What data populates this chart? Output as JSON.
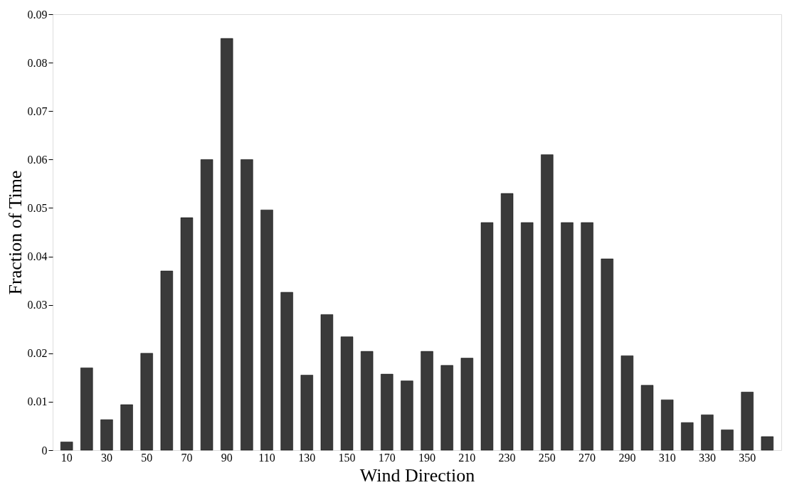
{
  "chart_data": {
    "type": "bar",
    "xlabel": "Wind Direction",
    "ylabel": "Fraction of Time",
    "categories": [
      "10",
      null,
      "30",
      null,
      "50",
      null,
      "70",
      null,
      "90",
      null,
      "110",
      null,
      "130",
      null,
      "150",
      null,
      "170",
      null,
      "190",
      null,
      "210",
      null,
      "230",
      null,
      "250",
      null,
      "270",
      null,
      "290",
      null,
      "310",
      null,
      "330",
      null,
      "350",
      null
    ],
    "values": [
      0.0017,
      0.017,
      0.0063,
      0.0094,
      0.02,
      0.037,
      0.048,
      0.06,
      0.085,
      0.06,
      0.0496,
      0.0326,
      0.0155,
      0.028,
      0.0234,
      0.0204,
      0.0157,
      0.0143,
      0.0204,
      0.0175,
      0.019,
      0.047,
      0.053,
      0.047,
      0.061,
      0.047,
      0.047,
      0.0395,
      0.0195,
      0.0134,
      0.0104,
      0.0057,
      0.0073,
      0.0042,
      0.012,
      0.0028
    ],
    "color": "#3a3a3a",
    "ylim": [
      0,
      0.09
    ],
    "yticks": [
      0,
      0.01,
      0.02,
      0.03,
      0.04,
      0.05,
      0.06,
      0.07,
      0.08,
      0.09
    ],
    "grid": false
  }
}
